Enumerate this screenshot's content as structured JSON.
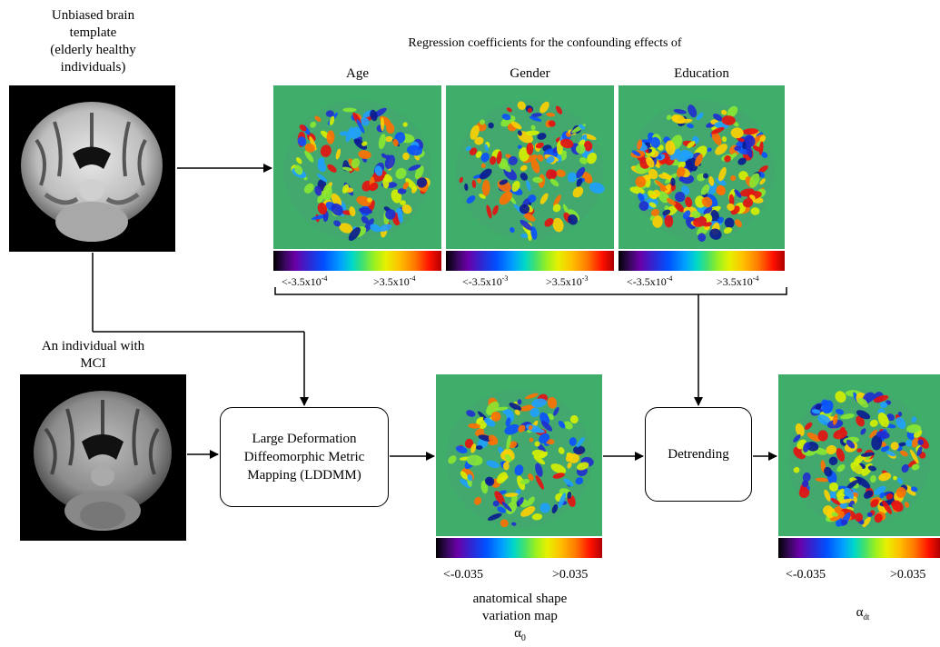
{
  "template": {
    "caption_lines": [
      "Unbiased brain",
      "template",
      "(elderly healthy",
      "individuals)"
    ]
  },
  "individual": {
    "caption_lines": [
      "An individual with",
      "MCI"
    ]
  },
  "regression": {
    "title": "Regression coefficients for the confounding effects of",
    "panels": [
      {
        "label": "Age",
        "min": "<-3.5x10",
        "min_exp": "-4",
        "max": ">3.5x10",
        "max_exp": "-4"
      },
      {
        "label": "Gender",
        "min": "<-3.5x10",
        "min_exp": "-3",
        "max": ">3.5x10",
        "max_exp": "-3"
      },
      {
        "label": "Education",
        "min": "<-3.5x10",
        "min_exp": "-4",
        "max": ">3.5x10",
        "max_exp": "-4"
      }
    ]
  },
  "lddmm": {
    "lines": [
      "Large Deformation",
      "Diffeomorphic Metric",
      "Mapping (LDDMM)"
    ]
  },
  "detrending": {
    "label": "Detrending"
  },
  "shape_map": {
    "min": "<-0.035",
    "max": ">0.035",
    "caption_lines": [
      "anatomical shape",
      "variation map"
    ],
    "symbol": "α",
    "subscript": "0"
  },
  "detrended_map": {
    "min": "<-0.035",
    "max": ">0.035",
    "symbol": "α",
    "subscript": "dt"
  },
  "colors": {
    "map_background": "#3fae6a",
    "arrow": "#000000"
  }
}
